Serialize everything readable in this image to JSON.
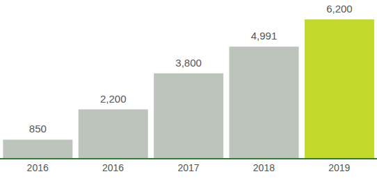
{
  "chart_data": {
    "type": "bar",
    "categories": [
      "2016",
      "2016",
      "2017",
      "2018",
      "2019"
    ],
    "values": [
      850,
      2200,
      3800,
      4991,
      6200
    ],
    "value_labels": [
      "850",
      "2,200",
      "3,800",
      "4,991",
      "6,200"
    ],
    "colors": [
      "#bcc4bb",
      "#bcc4bb",
      "#bcc4bb",
      "#bcc4bb",
      "#c5d92d"
    ],
    "ylim": [
      0,
      7000
    ],
    "data_labels": true,
    "tick_labels": "x"
  }
}
